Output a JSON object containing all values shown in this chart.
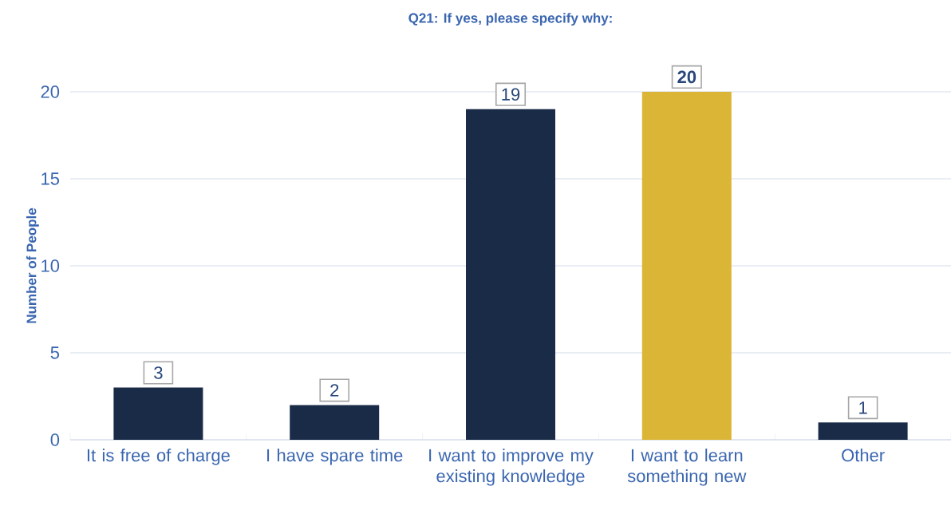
{
  "chart_data": {
    "type": "bar",
    "title": "Q21: If yes, please specify why:",
    "ylabel": "Number of People",
    "categories": [
      "It is free of charge",
      "I have spare time",
      "I want to improve my existing knowledge",
      "I want to learn something new",
      "Other"
    ],
    "values": [
      3,
      2,
      19,
      20,
      1
    ],
    "colors": [
      "#1a2b48",
      "#1a2b48",
      "#1a2b48",
      "#dbb536",
      "#1a2b48"
    ],
    "value_labels": [
      "3",
      "2",
      "19",
      "**20**",
      "1"
    ],
    "ylim": [
      0,
      20
    ],
    "yticks": [
      0,
      5,
      10,
      15,
      20
    ],
    "grid": "y"
  }
}
